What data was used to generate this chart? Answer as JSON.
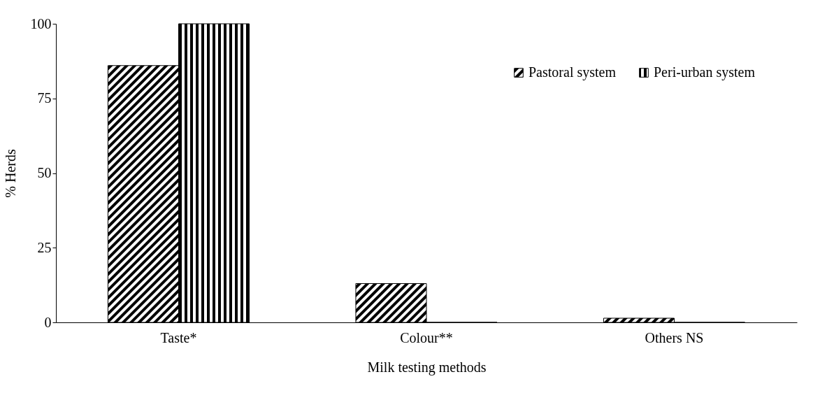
{
  "chart_data": {
    "type": "bar",
    "xlabel": "Milk testing methods",
    "ylabel": "% Herds",
    "categories": [
      "Taste*",
      "Colour**",
      "Others NS"
    ],
    "series": [
      {
        "name": "Pastoral system",
        "color": "#000000",
        "values": [
          86,
          13,
          1.4
        ]
      },
      {
        "name": "Peri-urban system",
        "color": "#000000",
        "values": [
          100,
          0,
          0
        ]
      }
    ],
    "ylim": [
      0,
      100
    ],
    "yticks": [
      0,
      25,
      50,
      75,
      100
    ],
    "grid": false,
    "legend": "top right"
  }
}
